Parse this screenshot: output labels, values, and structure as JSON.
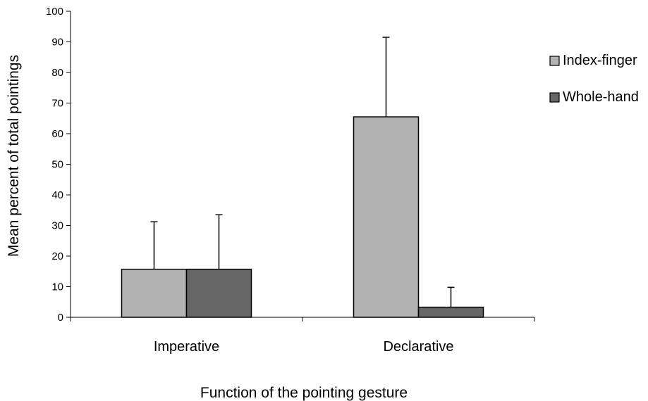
{
  "chart_data": {
    "type": "bar",
    "title": "",
    "xlabel": "Function of the pointing gesture",
    "ylabel": "Mean percent of total pointings",
    "ylim": [
      0,
      100
    ],
    "yticks": [
      "0",
      "10",
      "20",
      "30",
      "40",
      "50",
      "60",
      "70",
      "80",
      "90",
      "100"
    ],
    "categories": [
      "Imperative",
      "Declarative"
    ],
    "series": [
      {
        "name": "Index-finger",
        "values": [
          15.7,
          65.5
        ],
        "errors": [
          15.5,
          26.0
        ],
        "color": "#b2b2b2"
      },
      {
        "name": "Whole-hand",
        "values": [
          15.7,
          3.3
        ],
        "errors": [
          17.8,
          6.5
        ],
        "color": "#666666"
      }
    ],
    "grid": false,
    "legend_position": "right",
    "error_bars": "upper"
  }
}
